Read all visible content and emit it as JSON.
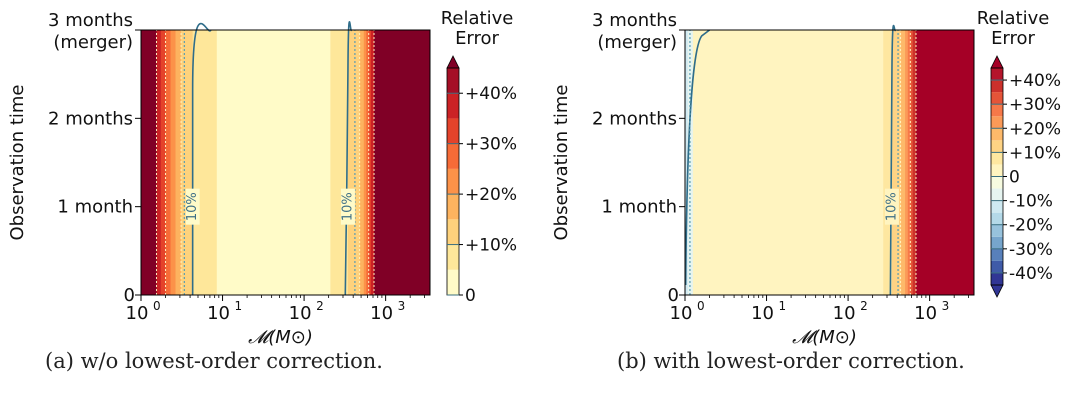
{
  "chart_data": [
    {
      "type": "heatmap",
      "panel": "a",
      "caption": "(a) w/o lowest-order correction.",
      "xlabel": "𝓜(M⊙)",
      "ylabel": "Observation time",
      "xscale": "log",
      "xlim": [
        1,
        3500
      ],
      "x_ticks": [
        1,
        10,
        100,
        1000
      ],
      "x_tick_labels": [
        "10",
        "10",
        "10",
        "10"
      ],
      "x_tick_exponents": [
        "0",
        "1",
        "2",
        "3"
      ],
      "ylim": [
        0,
        3
      ],
      "y_ticks": [
        0,
        1,
        2,
        3
      ],
      "y_tick_labels": [
        "0",
        "1 month",
        "2 months",
        "3 months"
      ],
      "y_top_sublabel": "(merger)",
      "colorbar": {
        "title_lines": [
          "Relative",
          "Error"
        ],
        "tick_labels": [
          "0",
          "+10%",
          "+20%",
          "+30%",
          "+40%"
        ],
        "tick_values": [
          0,
          0.1,
          0.2,
          0.3,
          0.4
        ],
        "extend": "max",
        "levels": [
          {
            "from": 0.0,
            "to": 0.05,
            "color": "#fffbc8"
          },
          {
            "from": 0.05,
            "to": 0.1,
            "color": "#fee79a"
          },
          {
            "from": 0.1,
            "to": 0.15,
            "color": "#fed27c"
          },
          {
            "from": 0.15,
            "to": 0.2,
            "color": "#fdb35f"
          },
          {
            "from": 0.2,
            "to": 0.25,
            "color": "#fc9249"
          },
          {
            "from": 0.25,
            "to": 0.3,
            "color": "#f66b37"
          },
          {
            "from": 0.3,
            "to": 0.35,
            "color": "#e4432b"
          },
          {
            "from": 0.35,
            "to": 0.4,
            "color": "#cb2225"
          },
          {
            "from": 0.4,
            "to": 0.45,
            "color": "#a50f26"
          }
        ],
        "over_color": "#800026"
      },
      "contour_labels": [
        {
          "text": "10%",
          "mass": 4.3,
          "time": 1.0
        },
        {
          "text": "10%",
          "mass": 345,
          "time": 1.0
        }
      ],
      "bands_left": [
        {
          "to_mass": 1.55,
          "color": "#800026"
        },
        {
          "to_mass": 1.75,
          "color": "#cb2225"
        },
        {
          "to_mass": 2.0,
          "color": "#e4432b"
        },
        {
          "to_mass": 2.3,
          "color": "#f66b37"
        },
        {
          "to_mass": 2.65,
          "color": "#fc9249"
        },
        {
          "to_mass": 3.1,
          "color": "#fdb35f"
        },
        {
          "to_mass": 4.3,
          "color": "#fed27c"
        },
        {
          "to_mass": 8.5,
          "color": "#fee79a"
        }
      ],
      "bands_right": [
        {
          "from_mass": 210,
          "color": "#fee79a"
        },
        {
          "from_mass": 345,
          "color": "#fed27c"
        },
        {
          "from_mass": 480,
          "color": "#fdb35f"
        },
        {
          "from_mass": 540,
          "color": "#fc9249"
        },
        {
          "from_mass": 580,
          "color": "#f66b37"
        },
        {
          "from_mass": 620,
          "color": "#e4432b"
        },
        {
          "from_mass": 660,
          "color": "#cb2225"
        },
        {
          "from_mass": 720,
          "color": "#800026"
        }
      ],
      "base_color": "#fffbc8"
    },
    {
      "type": "heatmap",
      "panel": "b",
      "caption": "(b) with lowest-order correction.",
      "xlabel": "𝓜(M⊙)",
      "ylabel": "Observation time",
      "xscale": "log",
      "xlim": [
        1,
        3500
      ],
      "x_ticks": [
        1,
        10,
        100,
        1000
      ],
      "x_tick_labels": [
        "10",
        "10",
        "10",
        "10"
      ],
      "x_tick_exponents": [
        "0",
        "1",
        "2",
        "3"
      ],
      "ylim": [
        0,
        3
      ],
      "y_ticks": [
        0,
        1,
        2,
        3
      ],
      "y_tick_labels": [
        "0",
        "1 month",
        "2 months",
        "3 months"
      ],
      "y_top_sublabel": "(merger)",
      "colorbar": {
        "title_lines": [
          "Relative",
          "Error"
        ],
        "tick_labels": [
          "-40%",
          "-30%",
          "-20%",
          "-10%",
          "0",
          "+10%",
          "+20%",
          "+30%",
          "+40%"
        ],
        "tick_values": [
          -0.4,
          -0.3,
          -0.2,
          -0.1,
          0,
          0.1,
          0.2,
          0.3,
          0.4
        ],
        "extend": "both",
        "levels": [
          {
            "from": -0.45,
            "to": -0.4,
            "color": "#313695"
          },
          {
            "from": -0.4,
            "to": -0.35,
            "color": "#3f5ba8"
          },
          {
            "from": -0.35,
            "to": -0.3,
            "color": "#5880bb"
          },
          {
            "from": -0.3,
            "to": -0.25,
            "color": "#76a5cc"
          },
          {
            "from": -0.25,
            "to": -0.2,
            "color": "#97c2dc"
          },
          {
            "from": -0.2,
            "to": -0.15,
            "color": "#b4d9e8"
          },
          {
            "from": -0.15,
            "to": -0.1,
            "color": "#cfe9f1"
          },
          {
            "from": -0.1,
            "to": -0.05,
            "color": "#e6f4f0"
          },
          {
            "from": -0.05,
            "to": 0.0,
            "color": "#f7fbe0"
          },
          {
            "from": 0.0,
            "to": 0.05,
            "color": "#fff4c0"
          },
          {
            "from": 0.05,
            "to": 0.1,
            "color": "#fee7a0"
          },
          {
            "from": 0.1,
            "to": 0.15,
            "color": "#fed384"
          },
          {
            "from": 0.15,
            "to": 0.2,
            "color": "#fdb96a"
          },
          {
            "from": 0.2,
            "to": 0.25,
            "color": "#fb9a58"
          },
          {
            "from": 0.25,
            "to": 0.3,
            "color": "#f67849"
          },
          {
            "from": 0.3,
            "to": 0.35,
            "color": "#e55438"
          },
          {
            "from": 0.35,
            "to": 0.4,
            "color": "#cc312b"
          },
          {
            "from": 0.4,
            "to": 0.45,
            "color": "#b5152b"
          }
        ],
        "under_color": "#313695",
        "over_color": "#a50026"
      },
      "contour_labels": [
        {
          "text": "10%",
          "mass": 345,
          "time": 1.0
        }
      ],
      "bands_left": [
        {
          "to_mass": 1.08,
          "color": "#cfe9f1"
        },
        {
          "to_mass": 1.25,
          "color": "#e6f4f0"
        }
      ],
      "bands_right": [
        {
          "from_mass": 270,
          "color": "#fee7a0"
        },
        {
          "from_mass": 345,
          "color": "#fed384"
        },
        {
          "from_mass": 440,
          "color": "#fdb96a"
        },
        {
          "from_mass": 500,
          "color": "#fb9a58"
        },
        {
          "from_mass": 540,
          "color": "#f67849"
        },
        {
          "from_mass": 580,
          "color": "#e55438"
        },
        {
          "from_mass": 620,
          "color": "#cc312b"
        },
        {
          "from_mass": 680,
          "color": "#a50026"
        }
      ],
      "base_color": "#fff4c0"
    }
  ]
}
